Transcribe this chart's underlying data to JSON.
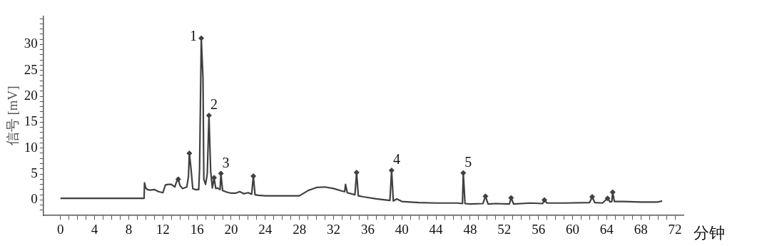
{
  "chart_data": {
    "type": "line",
    "xlabel": "分钟",
    "ylabel": "信号 [mV]",
    "xlim": [
      -2,
      73
    ],
    "ylim": [
      -3,
      35.5
    ],
    "xticks": [
      0,
      {
        "value": 1,
        "label": null
      },
      {
        "value": 2,
        "label": null
      },
      {
        "value": 3,
        "label": null
      },
      4,
      {
        "value": 5,
        "label": null
      },
      {
        "value": 6,
        "label": null
      },
      {
        "value": 7,
        "label": null
      },
      8,
      {
        "value": 9,
        "label": null
      },
      {
        "value": 10,
        "label": null
      },
      {
        "value": 11,
        "label": null
      },
      12,
      {
        "value": 13,
        "label": null
      },
      {
        "value": 14,
        "label": null
      },
      {
        "value": 15,
        "label": null
      },
      16,
      {
        "value": 17,
        "label": null
      },
      {
        "value": 18,
        "label": null
      },
      {
        "value": 19,
        "label": null
      },
      20,
      {
        "value": 21,
        "label": null
      },
      {
        "value": 22,
        "label": null
      },
      {
        "value": 23,
        "label": null
      },
      24,
      {
        "value": 25,
        "label": null
      },
      {
        "value": 26,
        "label": null
      },
      {
        "value": 27,
        "label": null
      },
      28,
      {
        "value": 29,
        "label": null
      },
      {
        "value": 30,
        "label": null
      },
      {
        "value": 31,
        "label": null
      },
      32,
      {
        "value": 33,
        "label": null
      },
      {
        "value": 34,
        "label": null
      },
      {
        "value": 35,
        "label": null
      },
      36,
      {
        "value": 37,
        "label": null
      },
      {
        "value": 38,
        "label": null
      },
      {
        "value": 39,
        "label": null
      },
      40,
      {
        "value": 41,
        "label": null
      },
      {
        "value": 42,
        "label": null
      },
      {
        "value": 43,
        "label": null
      },
      44,
      {
        "value": 45,
        "label": null
      },
      {
        "value": 46,
        "label": null
      },
      {
        "value": 47,
        "label": null
      },
      48,
      {
        "value": 49,
        "label": null
      },
      {
        "value": 50,
        "label": null
      },
      {
        "value": 51,
        "label": null
      },
      52,
      {
        "value": 53,
        "label": null
      },
      {
        "value": 54,
        "label": null
      },
      {
        "value": 55,
        "label": null
      },
      56,
      {
        "value": 57,
        "label": null
      },
      {
        "value": 58,
        "label": null
      },
      {
        "value": 59,
        "label": null
      },
      60,
      {
        "value": 61,
        "label": null
      },
      {
        "value": 62,
        "label": null
      },
      {
        "value": 63,
        "label": null
      },
      64,
      {
        "value": 65,
        "label": null
      },
      {
        "value": 66,
        "label": null
      },
      {
        "value": 67,
        "label": null
      },
      68,
      {
        "value": 69,
        "label": null
      },
      {
        "value": 70,
        "label": null
      },
      {
        "value": 71,
        "label": null
      },
      72
    ],
    "yticks": [
      {
        "value": -2,
        "label": null
      },
      {
        "value": -1,
        "label": null
      },
      0,
      {
        "value": 1,
        "label": null
      },
      {
        "value": 2,
        "label": null
      },
      {
        "value": 3,
        "label": null
      },
      {
        "value": 4,
        "label": null
      },
      5,
      {
        "value": 6,
        "label": null
      },
      {
        "value": 7,
        "label": null
      },
      {
        "value": 8,
        "label": null
      },
      {
        "value": 9,
        "label": null
      },
      10,
      {
        "value": 11,
        "label": null
      },
      {
        "value": 12,
        "label": null
      },
      {
        "value": 13,
        "label": null
      },
      {
        "value": 14,
        "label": null
      },
      15,
      {
        "value": 16,
        "label": null
      },
      {
        "value": 17,
        "label": null
      },
      {
        "value": 18,
        "label": null
      },
      {
        "value": 19,
        "label": null
      },
      20,
      {
        "value": 21,
        "label": null
      },
      {
        "value": 22,
        "label": null
      },
      {
        "value": 23,
        "label": null
      },
      {
        "value": 24,
        "label": null
      },
      25,
      {
        "value": 26,
        "label": null
      },
      {
        "value": 27,
        "label": null
      },
      {
        "value": 28,
        "label": null
      },
      {
        "value": 29,
        "label": null
      },
      30,
      {
        "value": 31,
        "label": null
      },
      {
        "value": 32,
        "label": null
      },
      {
        "value": 33,
        "label": null
      },
      {
        "value": 34,
        "label": null
      },
      {
        "value": 35,
        "label": null
      }
    ],
    "grid": false,
    "legend": false,
    "series": [
      {
        "type": "line",
        "color": "#404040",
        "marker": "none",
        "x": [
          0,
          9.8,
          9.85,
          10.0,
          10.2,
          10.5,
          11.0,
          11.5,
          12.0,
          12.3,
          12.6,
          13.0,
          13.4,
          13.6,
          13.8,
          14.0,
          14.3,
          14.8,
          15.0,
          15.1,
          15.3,
          15.5,
          15.8,
          16.2,
          16.3,
          16.5,
          16.7,
          16.8,
          17.0,
          17.2,
          17.4,
          17.6,
          17.8,
          18.0,
          18.2,
          18.4,
          18.7,
          18.8,
          19.0,
          19.5,
          20.0,
          20.5,
          21.0,
          21.5,
          22.0,
          22.4,
          22.6,
          22.8,
          23.2,
          24.0,
          26.0,
          28.0,
          29.0,
          30.0,
          31.0,
          32.0,
          33.0,
          33.3,
          33.4,
          33.6,
          34.5,
          34.7,
          34.9,
          35.5,
          37.0,
          38.6,
          38.8,
          39.0,
          39.4,
          40.0,
          42.0,
          44.0,
          46.5,
          47.1,
          47.2,
          47.4,
          48.0,
          49.5,
          49.8,
          50.1,
          51.0,
          52.6,
          52.8,
          53.1,
          55.0,
          56.5,
          56.7,
          57.0,
          59.0,
          62.0,
          62.3,
          62.6,
          63.5,
          64.1,
          64.4,
          64.6,
          64.7,
          64.9,
          66.0,
          68.0,
          70.0,
          70.5
        ],
        "values": [
          0.3,
          0.3,
          3.3,
          2.3,
          2.0,
          1.9,
          2.0,
          1.6,
          1.4,
          2.9,
          3.0,
          3.0,
          2.5,
          3.5,
          4.0,
          2.8,
          2.2,
          2.5,
          4.5,
          9.0,
          6.0,
          2.2,
          2.0,
          2.0,
          6.0,
          31.2,
          23.5,
          4.0,
          3.0,
          5.0,
          16.3,
          5.5,
          2.3,
          4.3,
          2.2,
          2.3,
          2.0,
          5.1,
          1.8,
          1.5,
          1.3,
          1.3,
          1.6,
          1.2,
          1.4,
          1.1,
          4.6,
          1.0,
          0.9,
          0.8,
          0.8,
          0.8,
          1.8,
          2.4,
          2.5,
          2.2,
          1.7,
          1.6,
          3.0,
          1.4,
          1.0,
          5.3,
          0.8,
          0.6,
          0.2,
          -0.1,
          5.7,
          -0.2,
          0.2,
          -0.3,
          -0.5,
          -0.6,
          -0.6,
          -0.7,
          5.2,
          -0.7,
          -0.8,
          -0.7,
          0.7,
          -0.8,
          -0.7,
          -0.8,
          0.4,
          -0.8,
          -0.6,
          -0.7,
          0.0,
          -0.6,
          -0.6,
          -0.5,
          0.6,
          -0.5,
          -0.6,
          0.3,
          -0.4,
          -0.3,
          1.5,
          -0.3,
          -0.3,
          -0.4,
          -0.4,
          -0.2
        ]
      },
      {
        "type": "scatter",
        "color": "#404040",
        "marker": "diamond",
        "x": [
          13.8,
          15.1,
          16.5,
          17.4,
          18.0,
          18.8,
          22.6,
          34.7,
          38.8,
          47.2,
          49.8,
          52.8,
          56.7,
          62.3,
          64.1,
          64.7
        ],
        "values": [
          4.0,
          9.0,
          31.2,
          16.3,
          4.3,
          5.1,
          4.6,
          5.3,
          5.7,
          5.2,
          0.7,
          0.4,
          0.0,
          0.6,
          0.3,
          1.5
        ]
      }
    ],
    "annotations": [
      {
        "text": "1",
        "x": 16.5,
        "y": 31.2
      },
      {
        "text": "2",
        "x": 17.4,
        "y": 16.3
      },
      {
        "text": "3",
        "x": 18.8,
        "y": 5.1
      },
      {
        "text": "4",
        "x": 38.8,
        "y": 5.7
      },
      {
        "text": "5",
        "x": 47.2,
        "y": 5.2
      }
    ]
  }
}
